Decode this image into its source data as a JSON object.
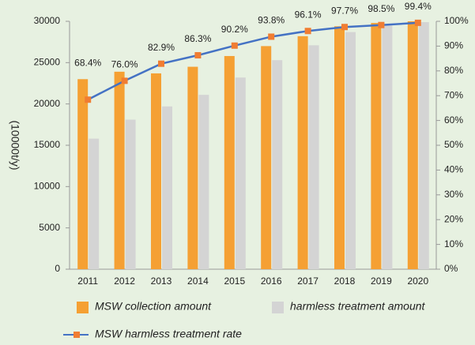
{
  "chart_data": {
    "type": "bar_line",
    "ylabel": "(10000t/y)",
    "categories": [
      "2011",
      "2012",
      "2013",
      "2014",
      "2015",
      "2016",
      "2017",
      "2018",
      "2019",
      "2020"
    ],
    "series": [
      {
        "name": "MSW collection amount",
        "color": "#f5a033",
        "values": [
          23000,
          23900,
          23700,
          24500,
          25800,
          27000,
          28200,
          29400,
          29800,
          30000
        ]
      },
      {
        "name": "harmless treatment amount",
        "color": "#d4d4d4",
        "values": [
          15800,
          18100,
          19700,
          21100,
          23200,
          25300,
          27100,
          28700,
          29500,
          29900
        ]
      },
      {
        "name": "MSW harmless treatment rate",
        "type": "line",
        "axis": "y2",
        "color": "#4472c4",
        "marker_color": "#f07d32",
        "values": [
          68.4,
          76.0,
          82.9,
          86.3,
          90.2,
          93.8,
          96.1,
          97.7,
          98.5,
          99.4
        ],
        "value_labels": [
          "68.4%",
          "76.0%",
          "82.9%",
          "86.3%",
          "90.2%",
          "93.8%",
          "96.1%",
          "97.7%",
          "98.5%",
          "99.4%"
        ]
      }
    ],
    "ylim": [
      0,
      30000
    ],
    "yticks": [
      0,
      5000,
      10000,
      15000,
      20000,
      25000,
      30000
    ],
    "y2lim": [
      0,
      100
    ],
    "y2ticks": [
      {
        "value": 0,
        "label": "0%"
      },
      {
        "value": 10,
        "label": "10%"
      },
      {
        "value": 20,
        "label": "20%"
      },
      {
        "value": 30,
        "label": "30%"
      },
      {
        "value": 40,
        "label": "40%"
      },
      {
        "value": 50,
        "label": "50%"
      },
      {
        "value": 60,
        "label": "60%"
      },
      {
        "value": 70,
        "label": "70%"
      },
      {
        "value": 80,
        "label": "80%"
      },
      {
        "value": 90,
        "label": "90%"
      },
      {
        "value": 100,
        "label": "100%"
      }
    ]
  }
}
